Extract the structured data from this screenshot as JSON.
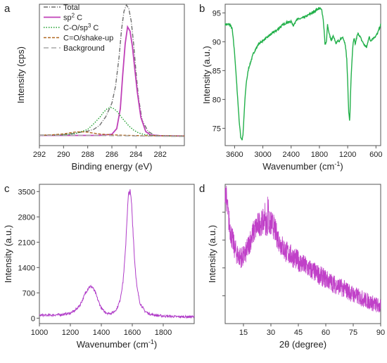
{
  "chart_data": [
    {
      "panel": "a",
      "type": "line",
      "xlabel": "Binding energy (eV)",
      "ylabel": "Intensity (cps)",
      "xlim": [
        292,
        280
      ],
      "x_reversed": true,
      "xticks": [
        292,
        290,
        288,
        286,
        284,
        282
      ],
      "ylim": [
        0,
        100
      ],
      "legend_position": "top-left",
      "series": [
        {
          "name": "Total",
          "color": "#6e6e6e",
          "style": "dashdot",
          "x": [
            292,
            291,
            290,
            289.5,
            289,
            288.5,
            288,
            287.5,
            287,
            286.5,
            286,
            285.7,
            285.4,
            285.2,
            285,
            284.8,
            284.6,
            284.4,
            284.2,
            284,
            283.8,
            283.5,
            283,
            282.5,
            282,
            281.5,
            281,
            280.5,
            280
          ],
          "y": [
            7.5,
            7.5,
            7.7,
            8.2,
            8.8,
            9.6,
            10.3,
            11.5,
            14.5,
            20.5,
            30,
            42,
            63,
            82,
            95,
            99.5,
            97,
            88,
            72,
            52,
            34,
            18,
            10,
            7.5,
            7,
            6.8,
            6.7,
            6.6,
            6.5
          ]
        },
        {
          "name": "sp2 C",
          "color": "#c040b8",
          "style": "solid",
          "x": [
            292,
            287,
            286,
            285.6,
            285.3,
            285.1,
            284.9,
            284.7,
            284.5,
            284.3,
            284.1,
            283.9,
            283.6,
            283.2,
            282.8,
            282,
            280
          ],
          "y": [
            7.2,
            7.2,
            8,
            12,
            26,
            50,
            72,
            84,
            81,
            70,
            54,
            38,
            20,
            10,
            7.5,
            7,
            6.8
          ]
        },
        {
          "name": "C-O/sp3 C",
          "color": "#20a030",
          "style": "dotted",
          "x": [
            292,
            290,
            289,
            288,
            287.5,
            287,
            286.7,
            286.4,
            286.1,
            285.8,
            285.5,
            285.2,
            284.9,
            284.6,
            284.2,
            283.8,
            283.3,
            282.8,
            282,
            280
          ],
          "y": [
            7.2,
            7.5,
            8.5,
            11.5,
            15.5,
            20,
            23.5,
            26,
            27,
            26,
            23.5,
            20,
            17,
            14,
            11,
            9,
            7.8,
            7.2,
            7,
            6.8
          ]
        },
        {
          "name": "C=O/shake-up",
          "color": "#b06820",
          "style": "dashed",
          "x": [
            292,
            291,
            290,
            289.5,
            289,
            288.5,
            288,
            287.5,
            287,
            286,
            285,
            284,
            283,
            282,
            281,
            280
          ],
          "y": [
            7.3,
            7.6,
            8.3,
            9,
            9.6,
            9.8,
            9.5,
            8.8,
            8.2,
            7.6,
            7.3,
            7.1,
            7,
            6.9,
            6.8,
            6.8
          ]
        },
        {
          "name": "Background",
          "color": "#a8a8a8",
          "style": "longdash",
          "x": [
            292,
            288,
            286,
            284,
            282,
            280
          ],
          "y": [
            7.3,
            7.2,
            7.0,
            6.8,
            6.6,
            6.4
          ]
        }
      ]
    },
    {
      "panel": "b",
      "type": "line",
      "xlabel": "Wavenumber (cm",
      "xlabel_sup": "-1",
      "xlabel_end": ")",
      "ylabel": "Intensity (a.u.)",
      "xlim": [
        3800,
        500
      ],
      "x_reversed": true,
      "xticks": [
        3600,
        3000,
        2400,
        1800,
        1200,
        600
      ],
      "ylim": [
        72,
        96.5
      ],
      "yticks": [
        75,
        80,
        85,
        90,
        95
      ],
      "series": [
        {
          "name": "",
          "color": "#22b04a",
          "x": [
            3800,
            3750,
            3700,
            3650,
            3600,
            3550,
            3500,
            3470,
            3440,
            3420,
            3400,
            3380,
            3350,
            3300,
            3200,
            3100,
            3000,
            2950,
            2900,
            2800,
            2700,
            2600,
            2500,
            2400,
            2350,
            2320,
            2300,
            2200,
            2100,
            2000,
            1900,
            1850,
            1800,
            1750,
            1720,
            1700,
            1680,
            1650,
            1630,
            1600,
            1550,
            1500,
            1450,
            1400,
            1380,
            1350,
            1300,
            1250,
            1220,
            1200,
            1180,
            1160,
            1150,
            1140,
            1120,
            1100,
            1080,
            1060,
            1040,
            1020,
            1000,
            980,
            950,
            900,
            850,
            800,
            780,
            760,
            740,
            720,
            700,
            650,
            600,
            550,
            500
          ],
          "y": [
            93,
            93,
            93,
            92.2,
            88,
            82,
            76,
            73.5,
            73,
            74,
            77,
            80,
            83,
            85.5,
            88,
            89.5,
            90.2,
            90.5,
            90.8,
            91.5,
            92,
            92.8,
            93.3,
            93.5,
            92.8,
            93.2,
            93.8,
            94,
            94.3,
            94.8,
            95.3,
            95.6,
            95.8,
            95.5,
            94,
            92,
            89.5,
            90,
            93,
            91.5,
            90.3,
            91,
            89.8,
            90.2,
            89.8,
            90.5,
            90.8,
            89.5,
            87,
            83,
            78,
            76.5,
            77.5,
            81,
            85,
            88,
            90,
            90.5,
            89.5,
            90.3,
            91,
            91.4,
            91.1,
            90.2,
            89.5,
            89,
            89.6,
            90.5,
            90.8,
            90.2,
            90.3,
            90.7,
            91,
            91.8,
            93
          ]
        }
      ]
    },
    {
      "panel": "c",
      "type": "line",
      "xlabel": "Wavenumber (cm",
      "xlabel_sup": "-1",
      "xlabel_end": ")",
      "ylabel": "Intensity (a.u.)",
      "xlim": [
        1000,
        2000
      ],
      "xticks": [
        1000,
        1200,
        1400,
        1600,
        1800
      ],
      "ylim": [
        -150,
        3700
      ],
      "yticks": [
        0,
        700,
        1400,
        2100,
        2800,
        3500
      ],
      "series": [
        {
          "name": "",
          "color": "#b03cc8",
          "x": [
            1000,
            1050,
            1100,
            1150,
            1200,
            1230,
            1260,
            1280,
            1300,
            1320,
            1340,
            1360,
            1380,
            1400,
            1420,
            1440,
            1460,
            1480,
            1500,
            1520,
            1540,
            1555,
            1565,
            1575,
            1585,
            1595,
            1605,
            1615,
            1630,
            1650,
            1680,
            1710,
            1750,
            1800,
            1850,
            1900,
            1950,
            2000
          ],
          "y": [
            80,
            80,
            90,
            100,
            140,
            210,
            350,
            520,
            720,
            860,
            870,
            720,
            480,
            280,
            180,
            140,
            130,
            170,
            260,
            480,
            1000,
            1800,
            2700,
            3400,
            3520,
            3200,
            2400,
            1600,
            850,
            420,
            200,
            120,
            80,
            60,
            50,
            40,
            40,
            35
          ]
        }
      ]
    },
    {
      "panel": "d",
      "type": "line",
      "xlabel": "2θ (degree)",
      "ylabel": "Intensity (a.u.)",
      "xlim": [
        5,
        90
      ],
      "xticks": [
        15,
        30,
        45,
        60,
        75,
        90
      ],
      "ylim": [
        0,
        100
      ],
      "series": [
        {
          "name": "",
          "color": "#c040c8",
          "x": [
            5,
            6,
            7,
            8,
            9,
            10,
            11,
            12,
            13,
            14,
            15,
            16,
            17,
            18,
            19,
            20,
            21,
            22,
            23,
            24,
            25,
            26,
            27,
            28,
            29,
            30,
            31,
            32,
            33,
            34,
            35,
            36,
            37,
            38,
            40,
            42,
            45,
            48,
            50,
            55,
            60,
            65,
            70,
            75,
            80,
            85,
            90
          ],
          "y": [
            98,
            85,
            74,
            66,
            60,
            55,
            51,
            49,
            48,
            47.5,
            48,
            50,
            53,
            57,
            61,
            64,
            67,
            69,
            71,
            72,
            72.5,
            73,
            72.5,
            72,
            71.5,
            72,
            71,
            68,
            64,
            61,
            58,
            56,
            54,
            52,
            50,
            48,
            45,
            42,
            40,
            36,
            32,
            28,
            25,
            21,
            18,
            15,
            12
          ]
        }
      ]
    }
  ],
  "panels": {
    "a": {
      "label": "a"
    },
    "b": {
      "label": "b"
    },
    "c": {
      "label": "c"
    },
    "d": {
      "label": "d"
    }
  },
  "legend_a": [
    {
      "name": "Total",
      "sup": ""
    },
    {
      "name": "sp",
      "sup": "2",
      "tail": " C"
    },
    {
      "name": "C-O/sp",
      "sup": "3",
      "tail": " C"
    },
    {
      "name": "C=O/shake-up",
      "sup": ""
    },
    {
      "name": "Background",
      "sup": ""
    }
  ],
  "c_yticks_text": [
    "0",
    "700",
    "1400",
    "2100",
    "2800",
    "3500"
  ]
}
